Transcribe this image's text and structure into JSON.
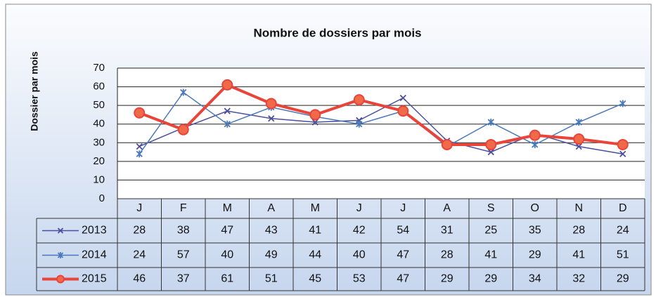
{
  "chart_data": {
    "type": "line",
    "title": "Nombre de dossiers par mois",
    "y_label": "Dossier par mois",
    "categories": [
      "J",
      "F",
      "M",
      "A",
      "M",
      "J",
      "J",
      "A",
      "S",
      "O",
      "N",
      "D"
    ],
    "series": [
      {
        "name": "2013",
        "color": "#4b4f9c",
        "marker": "x",
        "values": [
          28,
          38,
          47,
          43,
          41,
          42,
          54,
          31,
          25,
          35,
          28,
          24
        ]
      },
      {
        "name": "2014",
        "color": "#4a78b8",
        "marker": "star",
        "values": [
          24,
          57,
          40,
          49,
          44,
          40,
          47,
          28,
          41,
          29,
          41,
          51
        ]
      },
      {
        "name": "2015",
        "color": "#e8443a",
        "marker": "circle",
        "values": [
          46,
          37,
          61,
          51,
          45,
          53,
          47,
          29,
          29,
          34,
          32,
          29
        ]
      }
    ],
    "ylim": [
      0,
      70
    ],
    "yticks": [
      0,
      10,
      20,
      30,
      40,
      50,
      60,
      70
    ],
    "grid": true
  }
}
